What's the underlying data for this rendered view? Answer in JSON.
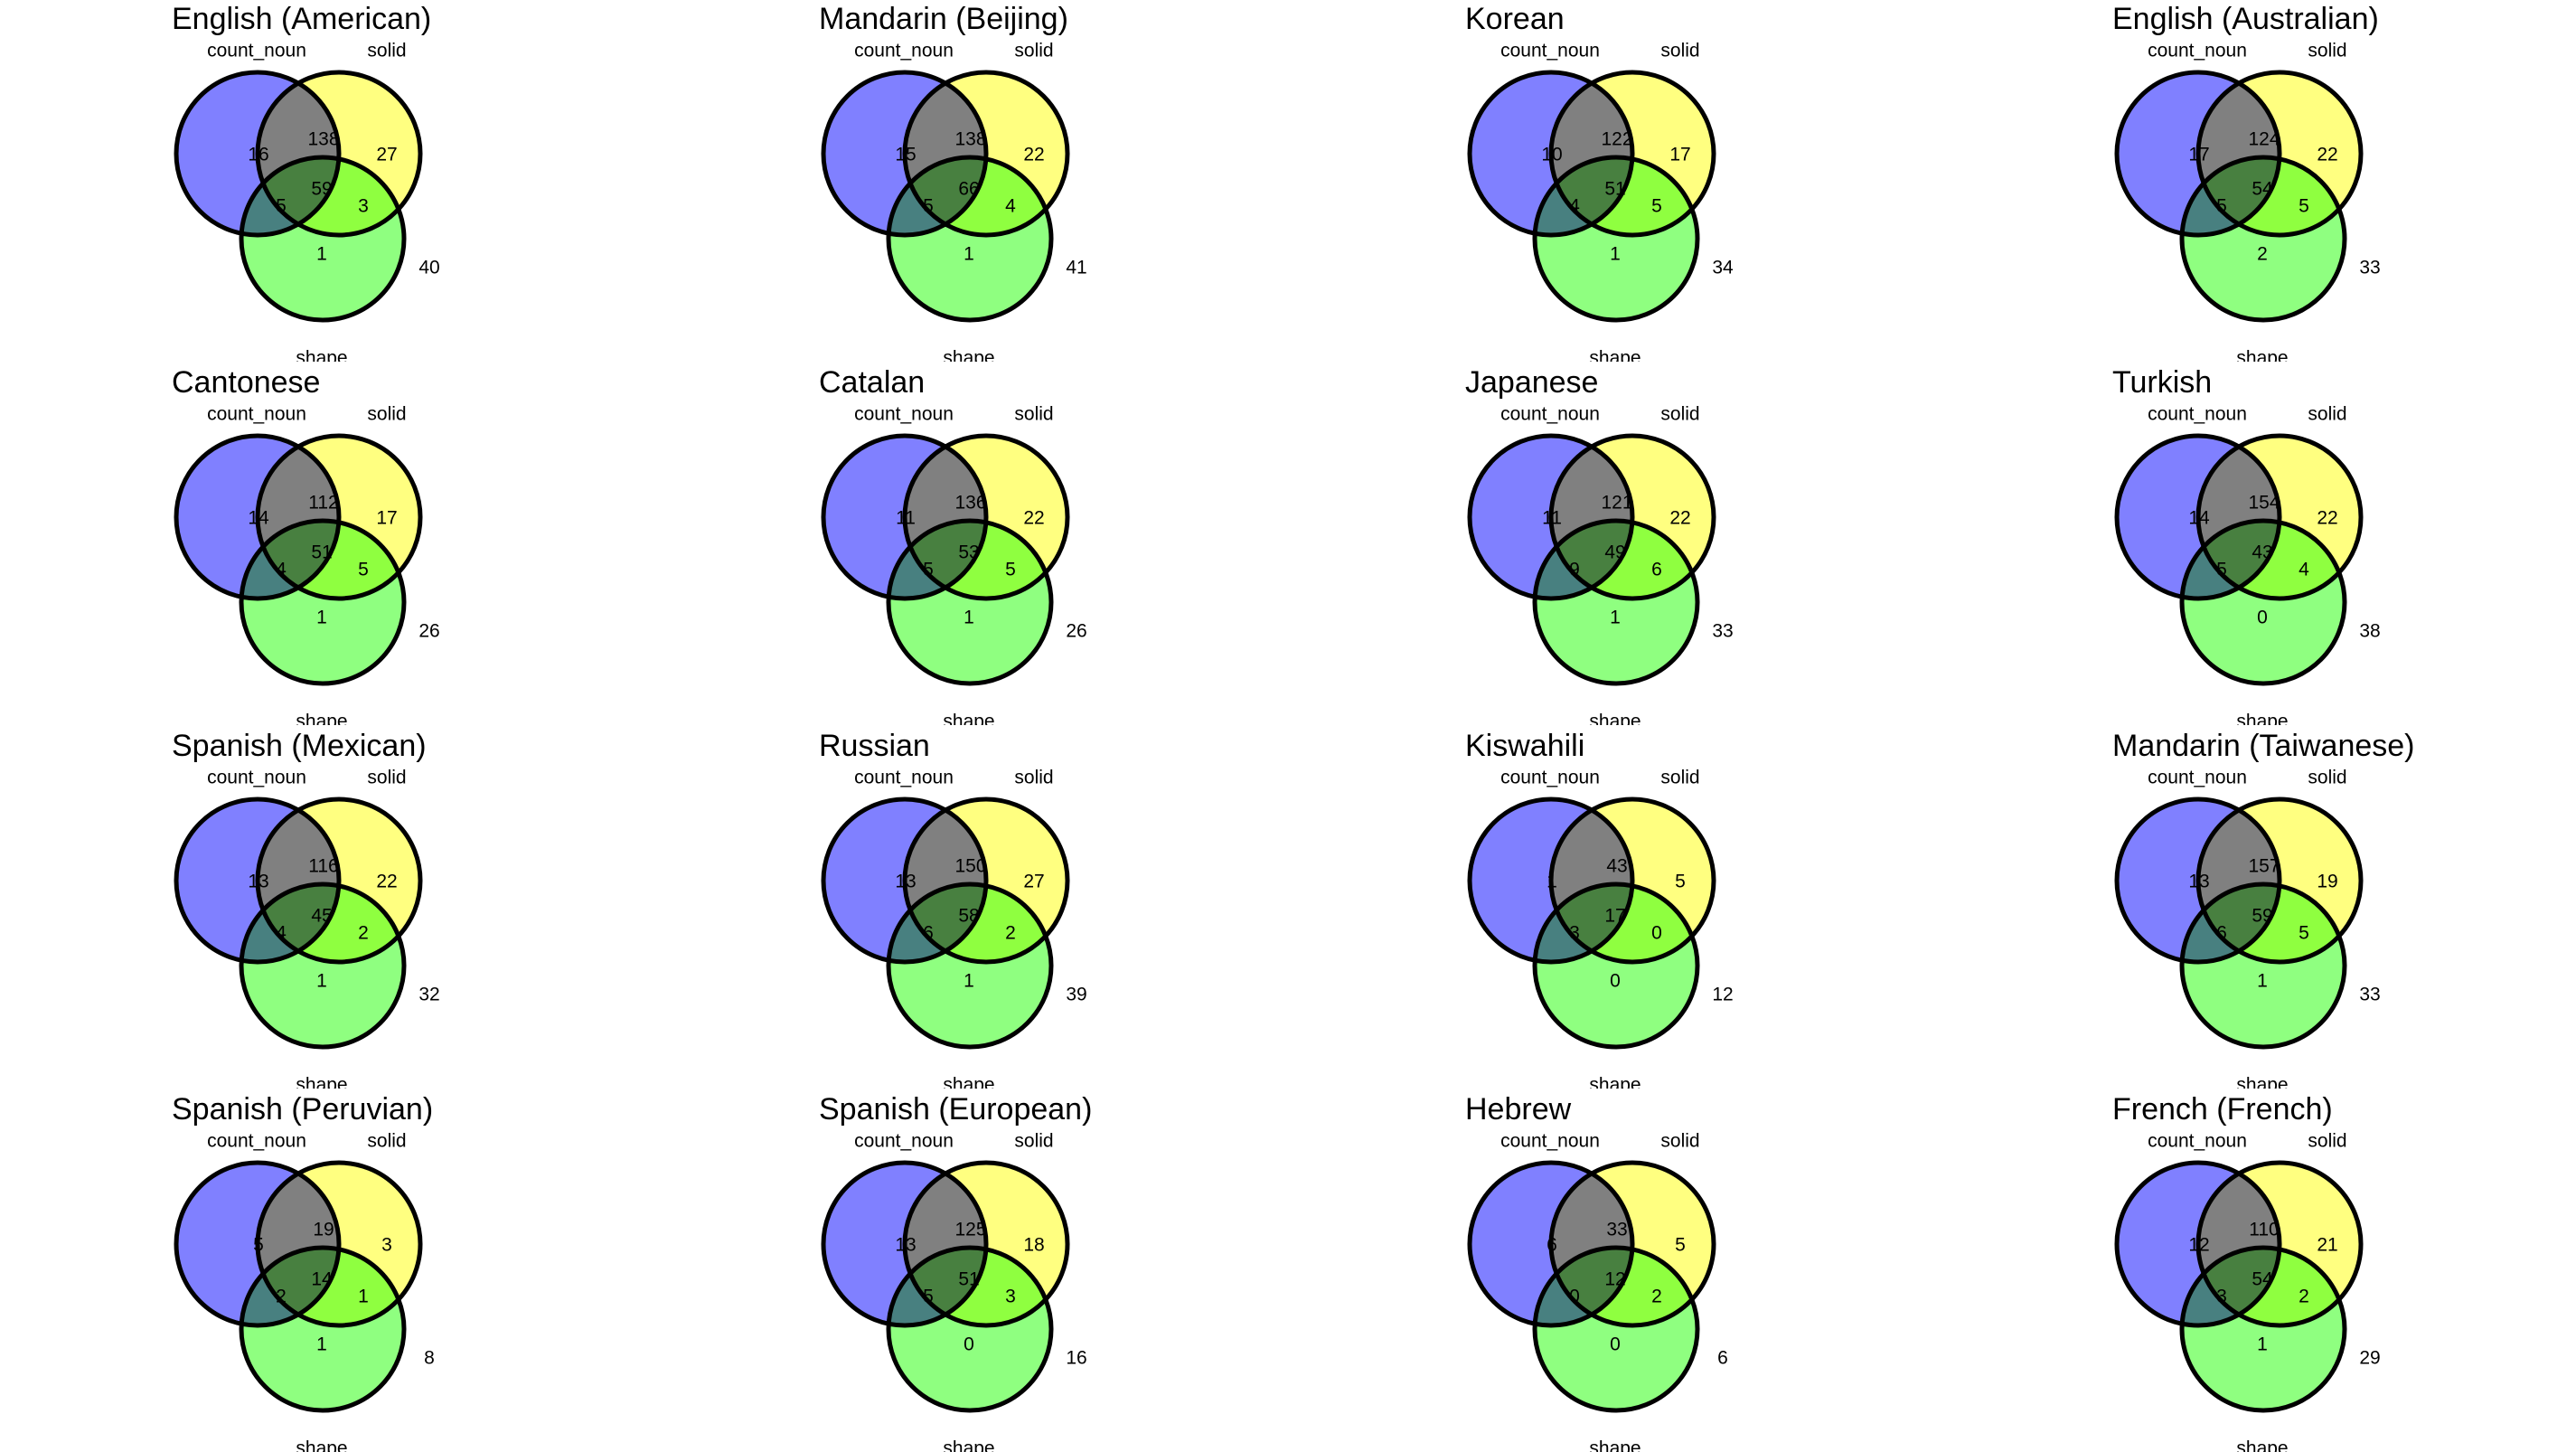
{
  "set_labels": {
    "a": "count_noun",
    "b": "solid",
    "c": "shape"
  },
  "colors": {
    "a": "#8080ff",
    "b": "#ffff80",
    "c": "#8fff80",
    "outline": "#000000"
  },
  "venn_panels": [
    {
      "title": "English (American)",
      "counts": {
        "a": 16,
        "ab": 138,
        "b": 27,
        "abc": 59,
        "ac": 5,
        "bc": 3,
        "c": 1,
        "none": 40
      }
    },
    {
      "title": "Mandarin (Beijing)",
      "counts": {
        "a": 15,
        "ab": 138,
        "b": 22,
        "abc": 66,
        "ac": 5,
        "bc": 4,
        "c": 1,
        "none": 41
      }
    },
    {
      "title": "Korean",
      "counts": {
        "a": 10,
        "ab": 122,
        "b": 17,
        "abc": 51,
        "ac": 4,
        "bc": 5,
        "c": 1,
        "none": 34
      }
    },
    {
      "title": "English (Australian)",
      "counts": {
        "a": 17,
        "ab": 124,
        "b": 22,
        "abc": 54,
        "ac": 5,
        "bc": 5,
        "c": 2,
        "none": 33
      }
    },
    {
      "title": "Cantonese",
      "counts": {
        "a": 14,
        "ab": 112,
        "b": 17,
        "abc": 51,
        "ac": 4,
        "bc": 5,
        "c": 1,
        "none": 26
      }
    },
    {
      "title": "Catalan",
      "counts": {
        "a": 11,
        "ab": 136,
        "b": 22,
        "abc": 53,
        "ac": 5,
        "bc": 5,
        "c": 1,
        "none": 26
      }
    },
    {
      "title": "Japanese",
      "counts": {
        "a": 11,
        "ab": 121,
        "b": 22,
        "abc": 49,
        "ac": 9,
        "bc": 6,
        "c": 1,
        "none": 33
      }
    },
    {
      "title": "Turkish",
      "counts": {
        "a": 14,
        "ab": 154,
        "b": 22,
        "abc": 43,
        "ac": 5,
        "bc": 4,
        "c": 0,
        "none": 38
      }
    },
    {
      "title": "Spanish (Mexican)",
      "counts": {
        "a": 13,
        "ab": 116,
        "b": 22,
        "abc": 45,
        "ac": 4,
        "bc": 2,
        "c": 1,
        "none": 32
      }
    },
    {
      "title": "Russian",
      "counts": {
        "a": 13,
        "ab": 150,
        "b": 27,
        "abc": 58,
        "ac": 6,
        "bc": 2,
        "c": 1,
        "none": 39
      }
    },
    {
      "title": "Kiswahili",
      "counts": {
        "a": 1,
        "ab": 43,
        "b": 5,
        "abc": 17,
        "ac": 3,
        "bc": 0,
        "c": 0,
        "none": 12
      }
    },
    {
      "title": "Mandarin (Taiwanese)",
      "counts": {
        "a": 13,
        "ab": 157,
        "b": 19,
        "abc": 59,
        "ac": 6,
        "bc": 5,
        "c": 1,
        "none": 33
      }
    },
    {
      "title": "Spanish (Peruvian)",
      "counts": {
        "a": 5,
        "ab": 19,
        "b": 3,
        "abc": 14,
        "ac": 2,
        "bc": 1,
        "c": 1,
        "none": 8
      }
    },
    {
      "title": "Spanish (European)",
      "counts": {
        "a": 13,
        "ab": 125,
        "b": 18,
        "abc": 51,
        "ac": 5,
        "bc": 3,
        "c": 0,
        "none": 16
      }
    },
    {
      "title": "Hebrew",
      "counts": {
        "a": 6,
        "ab": 33,
        "b": 5,
        "abc": 12,
        "ac": 0,
        "bc": 2,
        "c": 0,
        "none": 6
      }
    },
    {
      "title": "French (French)",
      "counts": {
        "a": 12,
        "ab": 110,
        "b": 21,
        "abc": 54,
        "ac": 3,
        "bc": 2,
        "c": 1,
        "none": 29
      }
    }
  ]
}
